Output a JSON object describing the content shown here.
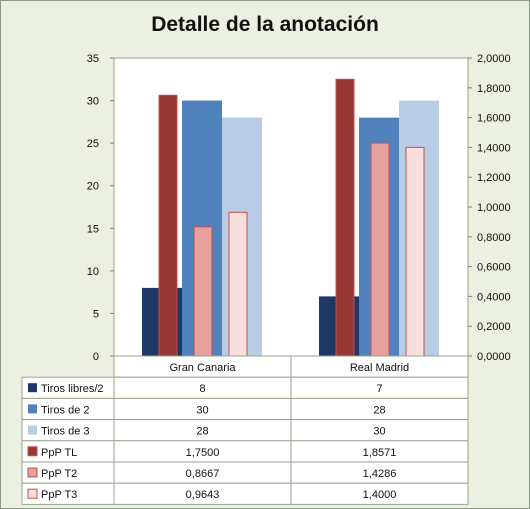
{
  "title": "Detalle de la anotación",
  "chart_data": {
    "type": "bar",
    "title": "Detalle de la anotación",
    "categories": [
      "Gran Canaria",
      "Real Madrid"
    ],
    "primary_axis": {
      "min": 0,
      "max": 35,
      "step": 5,
      "ticks": [
        "0",
        "5",
        "10",
        "15",
        "20",
        "25",
        "30",
        "35"
      ]
    },
    "secondary_axis": {
      "min": 0,
      "max": 2,
      "step": 0.2,
      "ticks": [
        "0,0000",
        "0,2000",
        "0,4000",
        "0,6000",
        "0,8000",
        "1,0000",
        "1,2000",
        "1,4000",
        "1,6000",
        "1,8000",
        "2,0000"
      ]
    },
    "grid": false,
    "legend": "data table",
    "series": [
      {
        "name": "Tiros libres/2",
        "axis": "primary",
        "color": "#1f3864",
        "values": [
          8,
          7
        ],
        "labels": [
          "8",
          "7"
        ]
      },
      {
        "name": "Tiros de 2",
        "axis": "primary",
        "color": "#4f81bd",
        "values": [
          30,
          28
        ],
        "labels": [
          "30",
          "28"
        ]
      },
      {
        "name": "Tiros de 3",
        "axis": "primary",
        "color": "#b8cce4",
        "values": [
          28,
          30
        ],
        "labels": [
          "28",
          "30"
        ]
      },
      {
        "name": "PpP TL",
        "axis": "secondary",
        "color": "#953735",
        "values": [
          1.75,
          1.8571
        ],
        "labels": [
          "1,7500",
          "1,8571"
        ]
      },
      {
        "name": "PpP T2",
        "axis": "secondary",
        "color": "#e6a09e",
        "values": [
          0.8667,
          1.4286
        ],
        "labels": [
          "0,8667",
          "1,4286"
        ]
      },
      {
        "name": "PpP T3",
        "axis": "secondary",
        "color": "#f9dede",
        "values": [
          0.9643,
          1.4
        ],
        "labels": [
          "0,9643",
          "1,4000"
        ]
      }
    ]
  }
}
